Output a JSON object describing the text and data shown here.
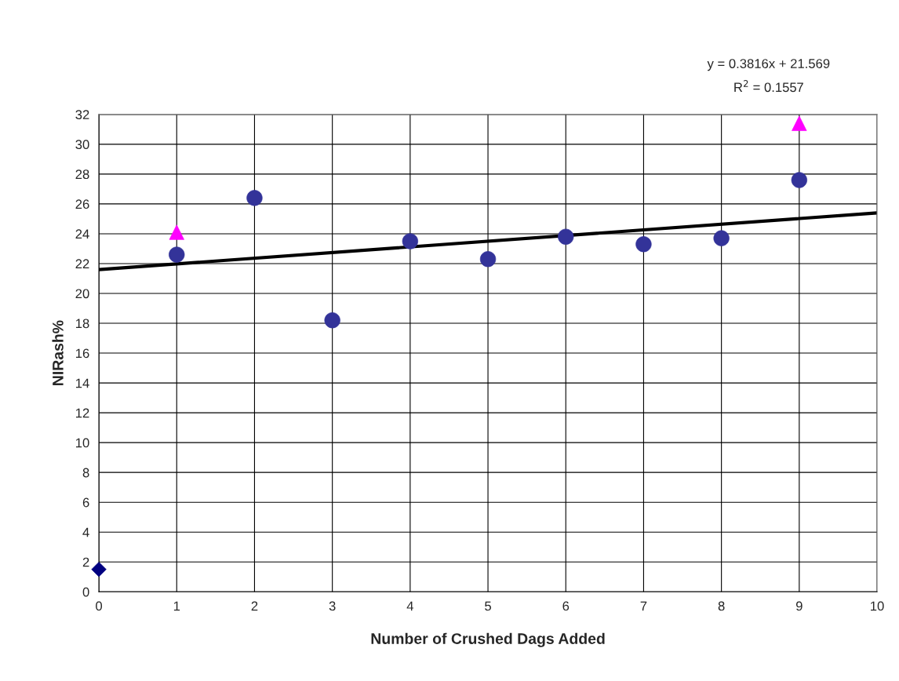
{
  "chart_data": {
    "type": "scatter",
    "xlabel": "Number of Crushed Dags Added",
    "ylabel": "NIRash%",
    "annotations": [
      "y = 0.3816x + 21.569",
      "R$^{2}$ = 0.1557"
    ],
    "series": [
      {
        "marker": "diamond",
        "color": "#000080",
        "x": [
          0
        ],
        "values": [
          1.5
        ]
      },
      {
        "marker": "circle",
        "color": "#333399",
        "x": [
          1,
          2,
          3,
          4,
          5,
          6,
          7,
          8,
          9
        ],
        "values": [
          22.6,
          26.4,
          18.2,
          23.5,
          22.3,
          23.8,
          23.3,
          23.7,
          27.6
        ]
      },
      {
        "marker": "triangle",
        "color": "#ff00ff",
        "x": [
          1,
          9
        ],
        "values": [
          24.1,
          31.4
        ]
      },
      {
        "type": "line",
        "marker": "none",
        "line_style": "solid",
        "color": "#000000",
        "x": [
          0,
          10
        ],
        "values": [
          21.6,
          25.4
        ]
      }
    ],
    "xlim": [
      0,
      10
    ],
    "xticks": [
      0,
      1,
      2,
      3,
      4,
      5,
      6,
      7,
      8,
      9,
      10
    ],
    "ylim": [
      0,
      32
    ],
    "yticks": [
      0,
      2,
      4,
      6,
      8,
      10,
      12,
      14,
      16,
      18,
      20,
      22,
      24,
      26,
      28,
      30,
      32
    ],
    "grid": true,
    "legend": false
  }
}
